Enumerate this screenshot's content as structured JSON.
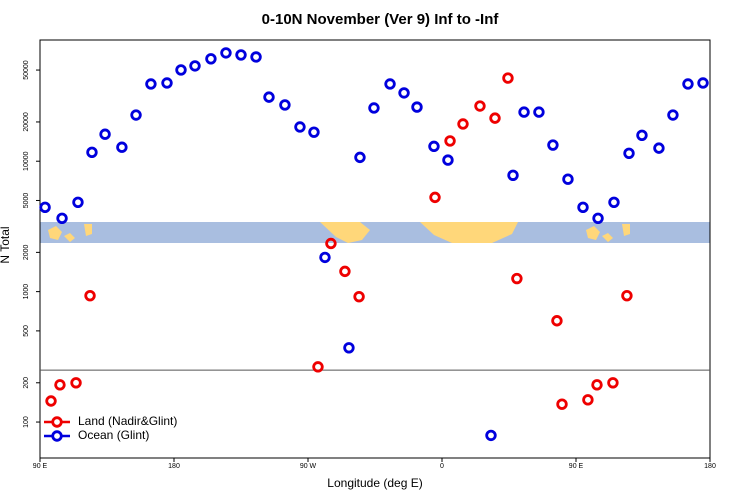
{
  "chart_data": {
    "type": "scatter",
    "title": "0-10N November (Ver 9)   Inf to -Inf",
    "x_label": "Longitude (deg E)",
    "y_label": "N Total",
    "log_y": true,
    "xlim": [
      90,
      540
    ],
    "ylim": [
      53,
      85000
    ],
    "xticks": [
      {
        "value": 90,
        "label": "90 E"
      },
      180,
      {
        "value": 270,
        "label": "90 W"
      },
      {
        "value": 360,
        "label": "0"
      },
      {
        "value": 450,
        "label": "90 E"
      },
      {
        "value": 540,
        "label": "180"
      }
    ],
    "yticks": [
      100,
      200,
      500,
      1000,
      2000,
      5000,
      10000,
      20000,
      50000
    ],
    "hlines": [
      250
    ],
    "legend": "bottom-left",
    "series": [
      {
        "name": "Land (Nadir&Glint)",
        "color": "#ee0000",
        "x": [
          97.4,
          103.4,
          114.2,
          123.6,
          276.7,
          285.4,
          294.8,
          304.3,
          355.3,
          365.4,
          374.1,
          385.5,
          395.6,
          404.3,
          410.3,
          437.2,
          440.6,
          458,
          464.1,
          474.8,
          484.2
        ],
        "values": [
          145,
          193,
          200,
          931,
          265,
          2340,
          1430,
          915,
          5280,
          14300,
          19300,
          26500,
          21400,
          43400,
          1260,
          598,
          137,
          148,
          193,
          200,
          931
        ]
      },
      {
        "name": "Ocean (Glint)",
        "color": "#0000dd",
        "x": [
          93.4,
          104.8,
          115.5,
          124.9,
          133.7,
          145,
          154.5,
          164.5,
          175.3,
          184.7,
          194.1,
          204.8,
          214.9,
          225,
          235.1,
          243.8,
          254.5,
          264.6,
          274,
          281.4,
          297.5,
          304.9,
          314.3,
          325.1,
          334.5,
          343.2,
          354.6,
          364,
          392.9,
          407.7,
          415.1,
          425.1,
          434.5,
          444.6,
          454.7,
          464.8,
          475.5,
          485.6,
          494.3,
          505.7,
          515.1,
          525.2,
          535.3
        ],
        "values": [
          4430,
          3650,
          4840,
          11700,
          16100,
          12800,
          22600,
          39100,
          39800,
          50100,
          53800,
          61000,
          67700,
          65300,
          63000,
          31000,
          27000,
          18300,
          16700,
          1830,
          371,
          10700,
          25600,
          39100,
          33400,
          26000,
          13000,
          10200,
          79,
          7800,
          23800,
          23800,
          13300,
          7280,
          4430,
          3650,
          4840,
          11500,
          15800,
          12600,
          22600,
          39100,
          39800
        ]
      }
    ]
  }
}
